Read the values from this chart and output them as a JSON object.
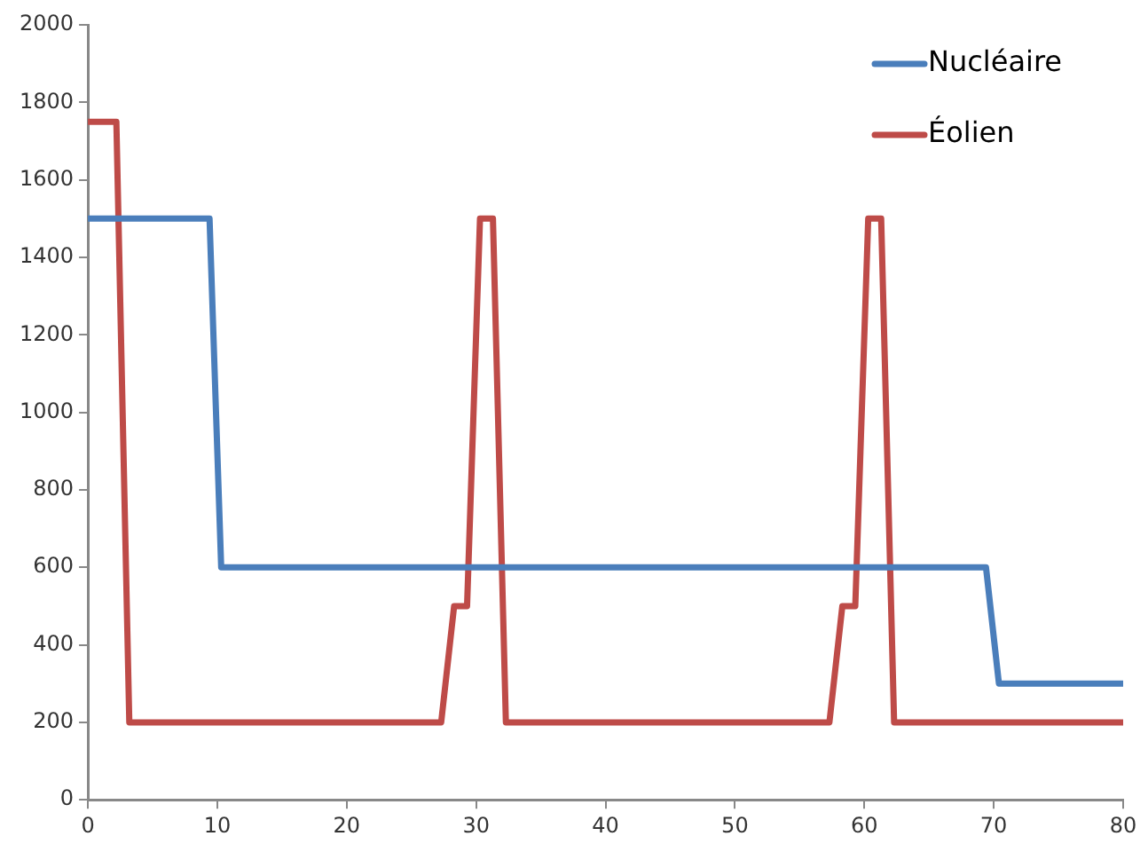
{
  "chart_data": {
    "type": "line",
    "xlim": [
      0,
      80
    ],
    "xticks": [
      0,
      10,
      20,
      30,
      40,
      50,
      60,
      70,
      80
    ],
    "ylim": [
      0,
      2000
    ],
    "yticks": [
      0,
      200,
      400,
      600,
      800,
      1000,
      1200,
      1400,
      1600,
      1800,
      2000
    ],
    "grid": false,
    "legend": "top right",
    "marker": "none",
    "line_style": "solid",
    "series": [
      {
        "name": "Nucléaire",
        "color": "#4a7ebb",
        "x": [
          0,
          9.4,
          10.3,
          69.4,
          70.4,
          80
        ],
        "values": [
          1500,
          1500,
          600,
          600,
          300,
          300
        ]
      },
      {
        "name": "Éolien",
        "color": "#be4b48",
        "x": [
          0,
          2.2,
          3.2,
          27.3,
          28.3,
          29.3,
          30.3,
          31.3,
          32.3,
          57.3,
          58.3,
          59.3,
          60.3,
          61.3,
          62.3,
          80
        ],
        "values": [
          1750,
          1750,
          200,
          200,
          500,
          500,
          1500,
          1500,
          200,
          200,
          500,
          500,
          1500,
          1500,
          200,
          200
        ]
      }
    ]
  }
}
